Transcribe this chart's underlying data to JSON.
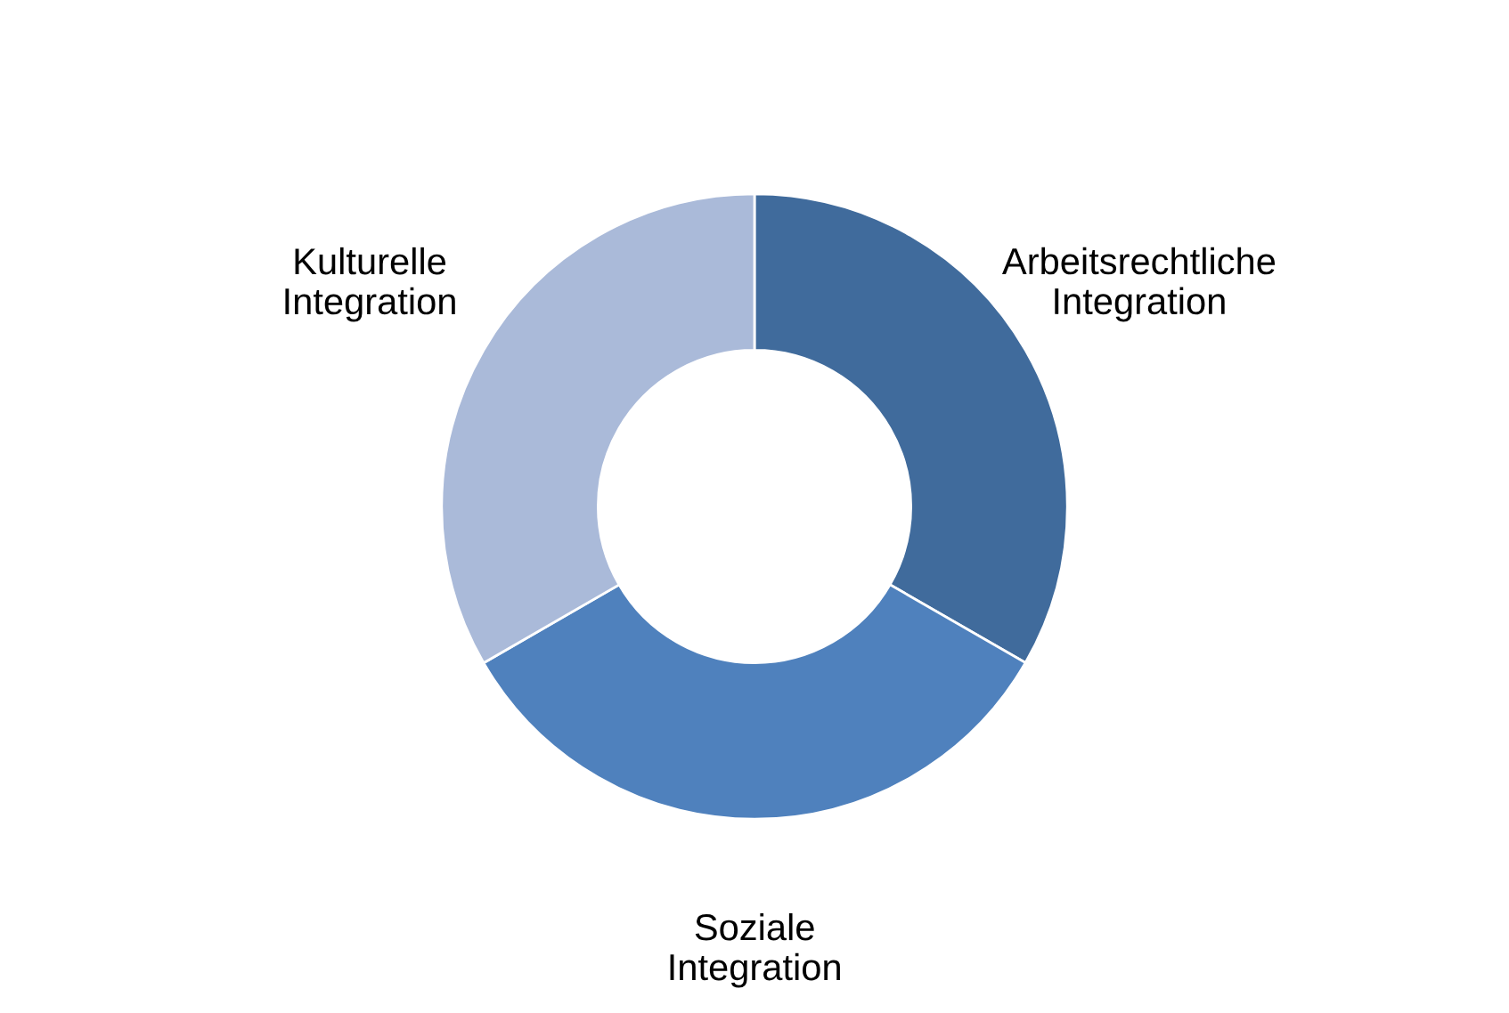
{
  "chart_data": {
    "type": "donut",
    "categories": [
      "Arbeitsrechtliche Integration",
      "Soziale Integration",
      "Kulturelle Integration"
    ],
    "values": [
      33.33,
      33.33,
      33.34
    ],
    "colors": [
      "#406b9c",
      "#4f81bd",
      "#aabad9"
    ],
    "legend": false
  }
}
